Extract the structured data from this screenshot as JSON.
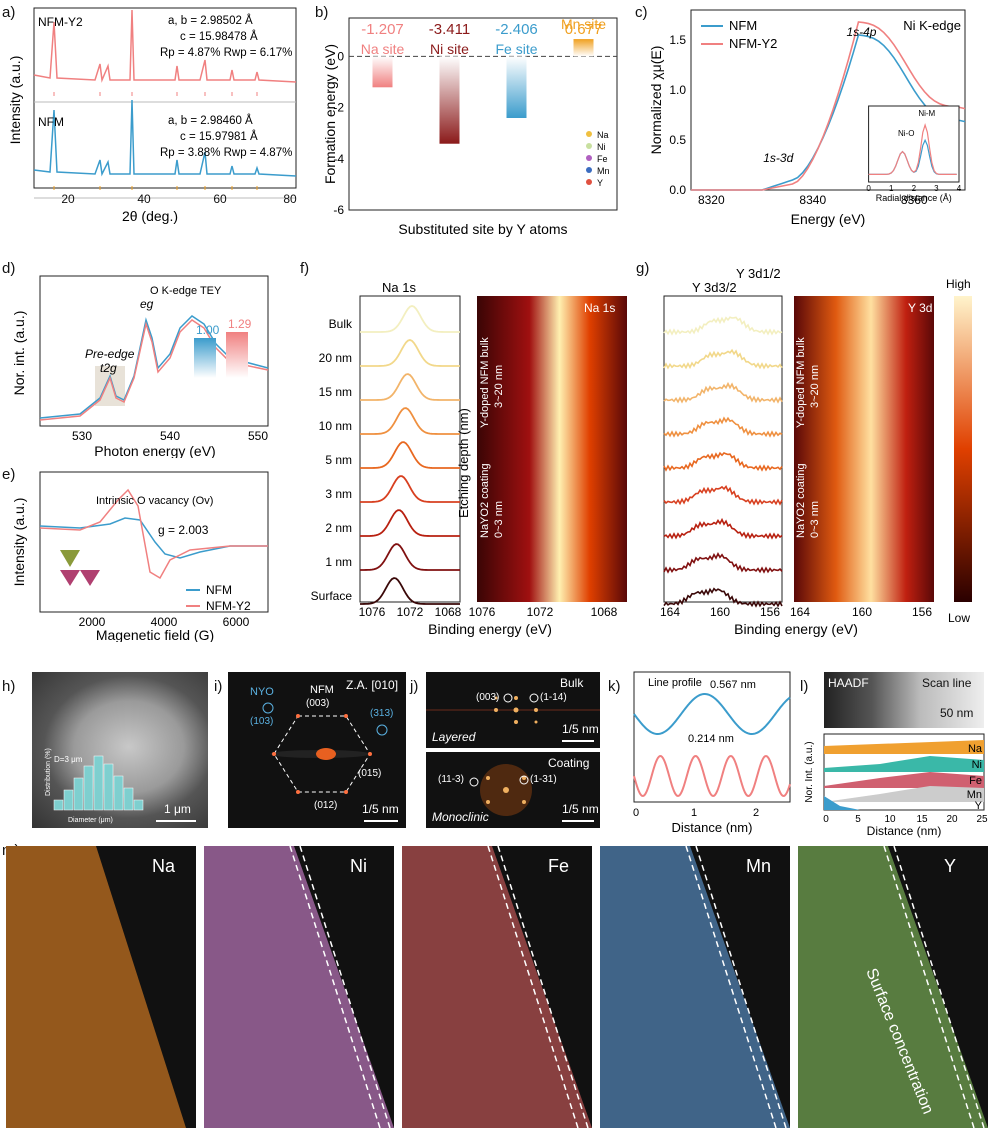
{
  "figure": {
    "panel_labels": [
      "a)",
      "b)",
      "c)",
      "d)",
      "e)",
      "f)",
      "g)",
      "h)",
      "i)",
      "j)",
      "k)",
      "l)",
      "m)"
    ]
  },
  "panel_a": {
    "ylabel": "Intensity (a.u.)",
    "xlabel": "2θ (deg.)",
    "xticks": [
      "20",
      "40",
      "60",
      "80"
    ],
    "top_name": "NFM-Y2",
    "top_params": [
      "a, b = 2.98502 Å",
      "c = 15.98478 Å",
      "Rp = 4.87%  Rwp = 6.17%"
    ],
    "bottom_name": "NFM",
    "bottom_params": [
      "a, b = 2.98460 Å",
      "c = 15.97981 Å",
      "Rp = 3.88%  Rwp = 4.87%"
    ],
    "colors": {
      "top": "#f08080",
      "bottom": "#3b9ccc"
    }
  },
  "chart_data": [
    {
      "type": "bar",
      "title": "",
      "xlabel": "Substituted site by Y atoms",
      "ylabel": "Formation energy (eV)",
      "ylim": [
        -6,
        1.5
      ],
      "yticks": [
        "0",
        "-2",
        "-4",
        "-6"
      ],
      "categories": [
        "Na site",
        "Ni site",
        "Fe site",
        "Mn site"
      ],
      "values": [
        -1.207,
        -3.411,
        -2.406,
        0.677
      ],
      "value_labels": [
        "-1.207",
        "-3.411",
        "-2.406",
        "0.677"
      ],
      "colors": [
        "#f08080",
        "#8b1a1a",
        "#3b9ccc",
        "#f0a020"
      ],
      "legend": [
        "Na",
        "Ni",
        "Fe",
        "Mn",
        "Y"
      ]
    },
    {
      "type": "line",
      "title": "Ni K-edge",
      "xlabel": "Energy (eV)",
      "ylabel": "Normalized χμ(E)",
      "xticks": [
        "8320",
        "8340",
        "8360"
      ],
      "yticks": [
        "0.0",
        "0.5",
        "1.0",
        "1.5"
      ],
      "series": [
        {
          "name": "NFM",
          "color": "#3b9ccc"
        },
        {
          "name": "NFM-Y2",
          "color": "#f08080"
        }
      ],
      "annotations": [
        "1s-4p",
        "1s-3d"
      ],
      "inset": {
        "xlabel": "Radial distance (Å)",
        "xticks": [
          "0",
          "1",
          "2",
          "3",
          "4"
        ],
        "labels": [
          "Ni-O",
          "Ni-M"
        ]
      }
    }
  ],
  "panel_d": {
    "ylabel": "Nor. int. (a.u.)",
    "xlabel": "Photon energy (eV)",
    "xticks": [
      "530",
      "540",
      "550"
    ],
    "title": "O K-edge TEY",
    "preedge": "Pre-edge",
    "t2g": "t2g",
    "eg": "eg",
    "bar1": "1.00",
    "bar2": "1.29"
  },
  "panel_e": {
    "ylabel": "Intensity (a.u.)",
    "xlabel": "Magenetic field (G)",
    "xticks": [
      "2000",
      "4000",
      "6000"
    ],
    "title": "Intrinsic O vacancy (Ov)",
    "g": "g = 2.003",
    "legend": [
      "NFM",
      "NFM-Y2"
    ]
  },
  "panel_f": {
    "title": "Na 1s",
    "map_title": "Na 1s",
    "depths": [
      "Bulk",
      "20 nm",
      "15 nm",
      "10 nm",
      "5 nm",
      "3 nm",
      "2 nm",
      "1 nm",
      "Surface"
    ],
    "xticks": [
      "1076",
      "1072",
      "1068"
    ],
    "xlabel": "Binding energy (eV)",
    "ylabel": "Etching depth (nm)",
    "bulk_label": "Y-doped NFM bulk",
    "bulk_range": "3~20 nm",
    "coat_label": "NaYO2 coating",
    "coat_range": "0~3 nm"
  },
  "panel_g": {
    "title_a": "Y 3d3/2",
    "title_b": "Y 3d1/2",
    "map_title": "Y 3d",
    "xticks": [
      "164",
      "160",
      "156"
    ],
    "xlabel": "Binding energy (eV)",
    "bulk_label": "Y-doped NFM bulk",
    "bulk_range": "3~20 nm",
    "coat_label": "NaYO2 coating",
    "coat_range": "0~3 nm",
    "cbar_high": "High",
    "cbar_low": "Low"
  },
  "panel_h": {
    "d_label": "D=3 μm",
    "ylabel": "Distribution (%)",
    "xlabel": "Diameter (μm)",
    "scale": "1 μm"
  },
  "panel_i": {
    "za": "Z.A. [010]",
    "nyo": "NYO",
    "nfm": "NFM",
    "spots": [
      "(103)",
      "(003)",
      "(313)",
      "(015)",
      "(012)"
    ],
    "scale": "1/5 nm"
  },
  "panel_j": {
    "top_title": "Bulk",
    "top_name": "Layered",
    "top_spots": [
      "(003)",
      "(1-14)"
    ],
    "bot_title": "Coating",
    "bot_name": "Monoclinic",
    "bot_spots": [
      "(11-3)",
      "(1-31)"
    ],
    "scale": "1/5 nm"
  },
  "panel_k": {
    "title": "Line profile",
    "d1": "0.567 nm",
    "d2": "0.214 nm",
    "xlabel": "Distance (nm)",
    "xticks": [
      "0",
      "1",
      "2"
    ]
  },
  "panel_l": {
    "haadf": "HAADF",
    "scan": "Scan line",
    "scale": "50 nm",
    "ylabel": "Nor. Int. (a.u.)",
    "xlabel": "Distance (nm)",
    "xticks": [
      "0",
      "5",
      "10",
      "15",
      "20",
      "25"
    ],
    "elements": [
      "Na",
      "Ni",
      "Fe",
      "Mn",
      "Y"
    ]
  },
  "panel_m": {
    "maps": [
      "Na",
      "Ni",
      "Fe",
      "Mn",
      "Y"
    ],
    "note": "Surface concentration"
  }
}
